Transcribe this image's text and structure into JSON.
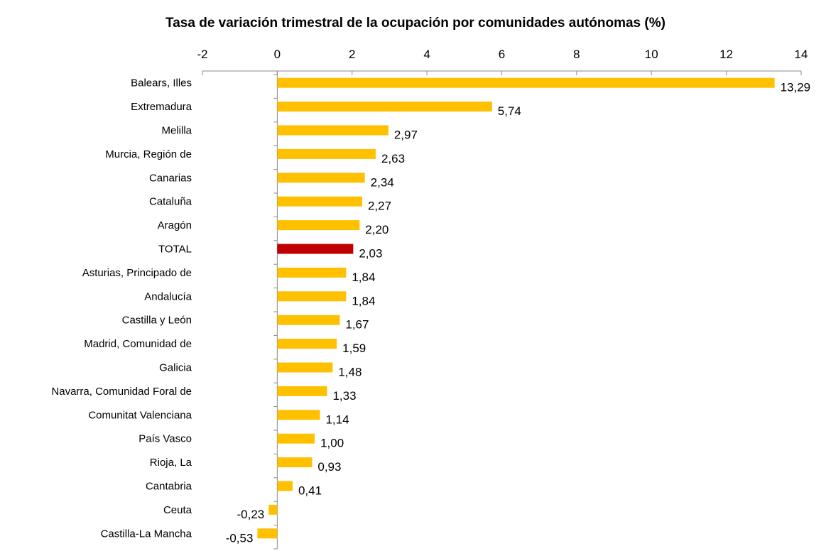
{
  "chart_data": {
    "type": "bar",
    "orientation": "horizontal",
    "title": "Tasa de variación trimestral de la ocupación por comunidades autónomas (%)",
    "categories": [
      "Balears, Illes",
      "Extremadura",
      "Melilla",
      "Murcia, Región de",
      "Canarias",
      "Cataluña",
      "Aragón",
      "TOTAL",
      "Asturias, Principado de",
      "Andalucía",
      "Castilla y León",
      "Madrid, Comunidad de",
      "Galicia",
      "Navarra, Comunidad Foral de",
      "Comunitat Valenciana",
      "País Vasco",
      "Rioja, La",
      "Cantabria",
      "Ceuta",
      "Castilla-La Mancha"
    ],
    "values": [
      13.29,
      5.74,
      2.97,
      2.63,
      2.34,
      2.27,
      2.2,
      2.03,
      1.84,
      1.84,
      1.67,
      1.59,
      1.48,
      1.33,
      1.14,
      1.0,
      0.93,
      0.41,
      -0.23,
      -0.53
    ],
    "value_labels": [
      "13,29",
      "5,74",
      "2,97",
      "2,63",
      "2,34",
      "2,27",
      "2,20",
      "2,03",
      "1,84",
      "1,84",
      "1,67",
      "1,59",
      "1,48",
      "1,33",
      "1,14",
      "1,00",
      "0,93",
      "0,41",
      "-0,23",
      "-0,53"
    ],
    "colors": [
      "#ffc000",
      "#ffc000",
      "#ffc000",
      "#ffc000",
      "#ffc000",
      "#ffc000",
      "#ffc000",
      "#c00000",
      "#ffc000",
      "#ffc000",
      "#ffc000",
      "#ffc000",
      "#ffc000",
      "#ffc000",
      "#ffc000",
      "#ffc000",
      "#ffc000",
      "#ffc000",
      "#ffc000",
      "#ffc000"
    ],
    "xlim": [
      -2,
      14
    ],
    "xticks": [
      -2,
      0,
      2,
      4,
      6,
      8,
      10,
      12,
      14
    ],
    "grid": false
  }
}
